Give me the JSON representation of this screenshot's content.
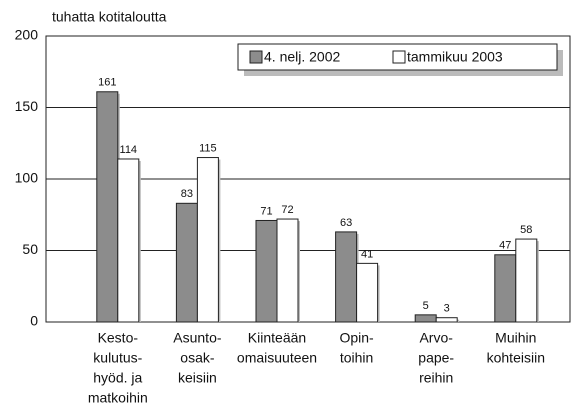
{
  "chart_data": {
    "type": "bar",
    "y_label": "tuhatta kotitaloutta",
    "categories": [
      [
        "Kesto-",
        "kulutus-",
        "hyöd. ja",
        "matkoihin"
      ],
      [
        "Asunto-",
        "osak-",
        "keisiin"
      ],
      [
        "Kiinteään",
        "omaisuuteen"
      ],
      [
        "Opin-",
        "toihin"
      ],
      [
        "Arvo-",
        "pape-",
        "reihin"
      ],
      [
        "Muihin",
        "kohteisiin"
      ]
    ],
    "series": [
      {
        "name": "4. nelj. 2002",
        "color": "#8c8c8c",
        "values": [
          161,
          83,
          71,
          63,
          5,
          47
        ]
      },
      {
        "name": "tammikuu 2003",
        "color": "#ffffff",
        "values": [
          114,
          115,
          72,
          41,
          3,
          58
        ]
      }
    ],
    "ylim": [
      0,
      200
    ],
    "yticks": [
      0,
      50,
      100,
      150,
      200
    ],
    "grid": true
  }
}
